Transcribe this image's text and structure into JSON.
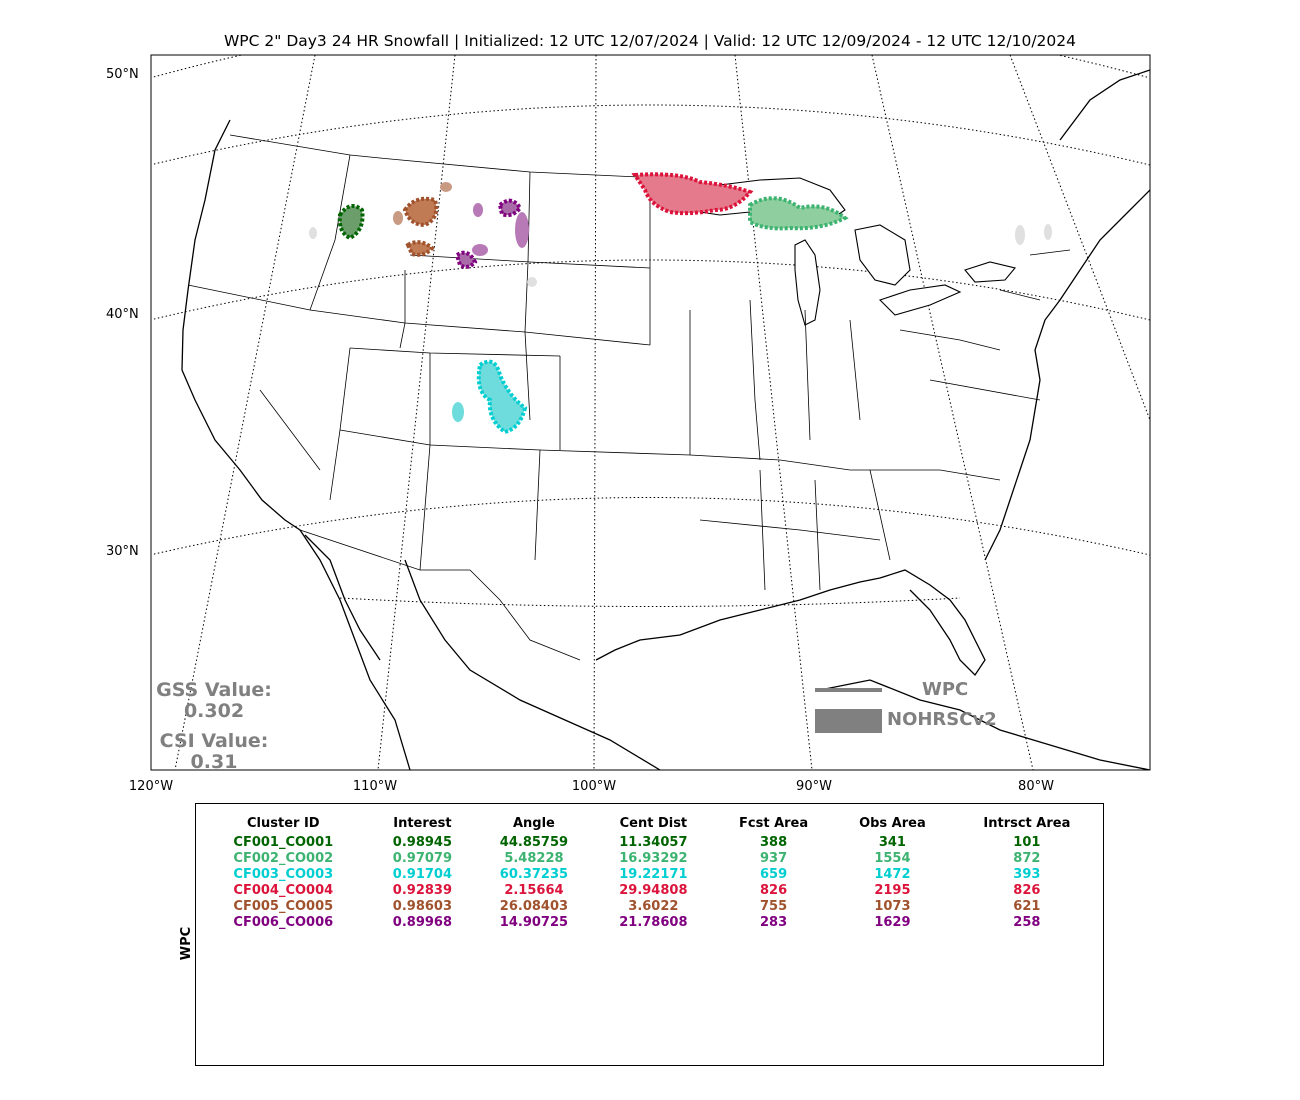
{
  "title": "WPC 2\" Day3 24 HR Snowfall | Initialized: 12 UTC 12/07/2024 | Valid: 12 UTC 12/09/2024 - 12 UTC 12/10/2024",
  "lat_labels": [
    "50°N",
    "40°N",
    "30°N"
  ],
  "lon_labels": [
    "120°W",
    "110°W",
    "100°W",
    "90°W",
    "80°W"
  ],
  "scores": {
    "gss_label": "GSS Value:",
    "gss_value": "0.302",
    "csi_label": "CSI Value:",
    "csi_value": "0.31"
  },
  "legend": {
    "wpc": "WPC",
    "nohrsc": "NOHRSCv2"
  },
  "table": {
    "side_label": "WPC",
    "headers": [
      "Cluster ID",
      "Interest",
      "Angle",
      "Cent Dist",
      "Fcst Area",
      "Obs Area",
      "Intrsct Area"
    ],
    "rows": [
      {
        "color": "#006400",
        "cells": [
          "CF001_CO001",
          "0.98945",
          "44.85759",
          "11.34057",
          "388",
          "341",
          "101"
        ]
      },
      {
        "color": "#3cb371",
        "cells": [
          "CF002_CO002",
          "0.97079",
          "5.48228",
          "16.93292",
          "937",
          "1554",
          "872"
        ]
      },
      {
        "color": "#00ced1",
        "cells": [
          "CF003_CO003",
          "0.91704",
          "60.37235",
          "19.22171",
          "659",
          "1472",
          "393"
        ]
      },
      {
        "color": "#dc143c",
        "cells": [
          "CF004_CO004",
          "0.92839",
          "2.15664",
          "29.94808",
          "826",
          "2195",
          "826"
        ]
      },
      {
        "color": "#a0522d",
        "cells": [
          "CF005_CO005",
          "0.98603",
          "26.08403",
          "3.6022",
          "755",
          "1073",
          "621"
        ]
      },
      {
        "color": "#800080",
        "cells": [
          "CF006_CO006",
          "0.89968",
          "14.90725",
          "21.78608",
          "283",
          "1629",
          "258"
        ]
      }
    ]
  },
  "colors": {
    "score_text": "#808080",
    "legend_gray": "#808080"
  }
}
